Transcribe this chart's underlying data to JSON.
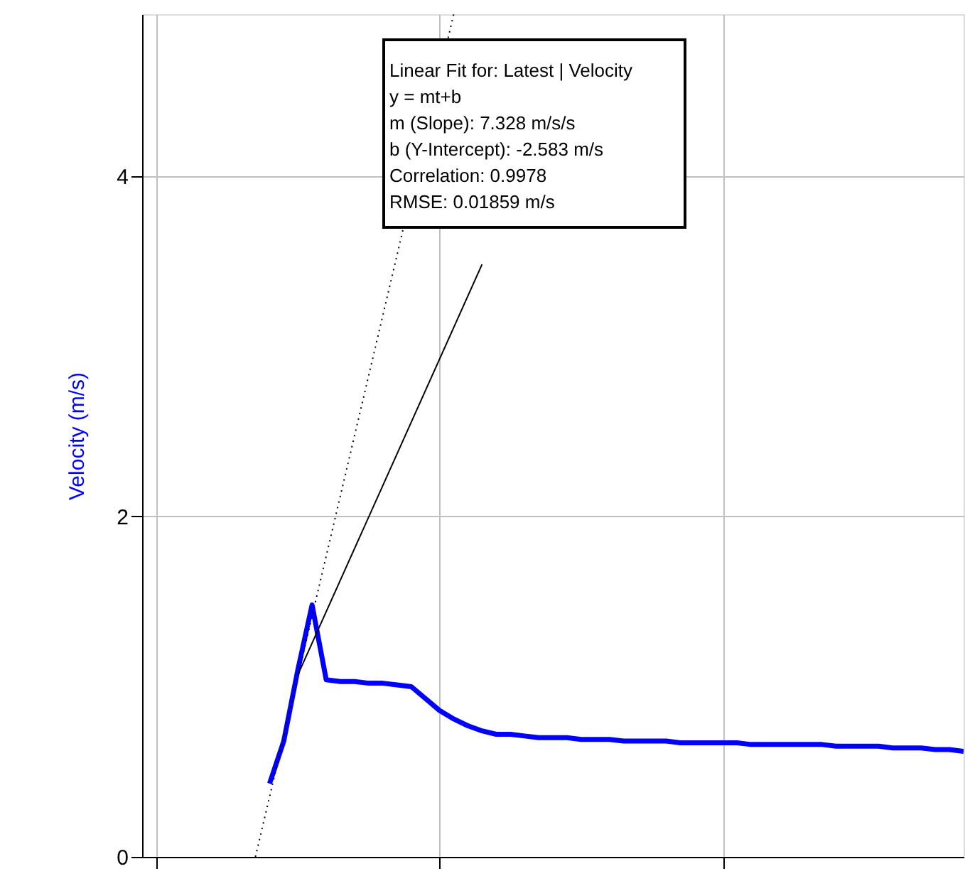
{
  "chart_data": {
    "type": "line",
    "ylabel": "Velocity (m/s)",
    "categories": [
      null,
      null,
      null,
      null,
      null,
      null,
      null,
      null,
      null,
      null,
      null,
      null,
      null,
      null,
      null,
      null,
      null,
      null,
      null,
      null,
      null,
      null,
      null,
      null,
      null,
      null,
      null,
      null,
      null,
      null,
      null,
      null,
      null,
      null,
      null,
      null,
      null,
      null,
      null,
      null,
      null,
      null,
      null,
      null,
      null,
      null,
      null,
      null,
      null,
      null,
      null,
      null,
      null,
      null,
      null,
      null,
      null,
      null,
      null
    ],
    "ylim": [
      0,
      4.95
    ],
    "yticks": [
      0,
      2,
      4
    ],
    "tick_labels": "y",
    "grid": true,
    "series": [
      {
        "color": "#0000ff",
        "line_style": "solid",
        "values": [
          null,
          null,
          null,
          null,
          null,
          null,
          null,
          null,
          null,
          0.43,
          0.68,
          1.1,
          1.48,
          1.04,
          1.03,
          1.03,
          1.02,
          1.02,
          1.01,
          1.0,
          0.93,
          0.86,
          0.81,
          0.77,
          0.74,
          0.72,
          0.72,
          0.71,
          0.7,
          0.7,
          0.7,
          0.69,
          0.69,
          0.69,
          0.68,
          0.68,
          0.68,
          0.68,
          0.67,
          0.67,
          0.67,
          0.67,
          0.67,
          0.66,
          0.66,
          0.66,
          0.66,
          0.66,
          0.66,
          0.65,
          0.65,
          0.65,
          0.65,
          0.64,
          0.64,
          0.64,
          0.63,
          0.63,
          0.62
        ]
      },
      {
        "color": "#000000",
        "line_style": "solid",
        "values": [
          null,
          null,
          null,
          null,
          null,
          null,
          null,
          null,
          null,
          null,
          null,
          1.07,
          null,
          null,
          null,
          null,
          null,
          null,
          null,
          null,
          null,
          null,
          null,
          null,
          3.48,
          null,
          null,
          null,
          null,
          null,
          null,
          null,
          null,
          null,
          null,
          null,
          null,
          null,
          null,
          null,
          null,
          null,
          null,
          null,
          null,
          null,
          null,
          null,
          null,
          null,
          null,
          null,
          null,
          null,
          null,
          null,
          null,
          null,
          null
        ]
      },
      {
        "color": "#000000",
        "line_style": "dotted",
        "values": [
          null,
          null,
          null,
          null,
          null,
          null,
          null,
          null,
          0,
          null,
          null,
          null,
          null,
          null,
          null,
          null,
          null,
          null,
          null,
          null,
          null,
          null,
          4.95,
          null,
          null,
          null,
          null,
          null,
          null,
          null,
          null,
          null,
          null,
          null,
          null,
          null,
          null,
          null,
          null,
          null,
          null,
          null,
          null,
          null,
          null,
          null,
          null,
          null,
          null,
          null,
          null,
          null,
          null,
          null,
          null,
          null,
          null,
          null,
          null
        ]
      }
    ],
    "annotations": [
      "Linear Fit for: Latest | Velocity",
      "y = mt+b",
      "m (Slope): 7.328 m/s/s",
      "b (Y-Intercept): -2.583 m/s",
      "Correlation: 0.9978",
      "RMSE: 0.01859 m/s"
    ]
  }
}
